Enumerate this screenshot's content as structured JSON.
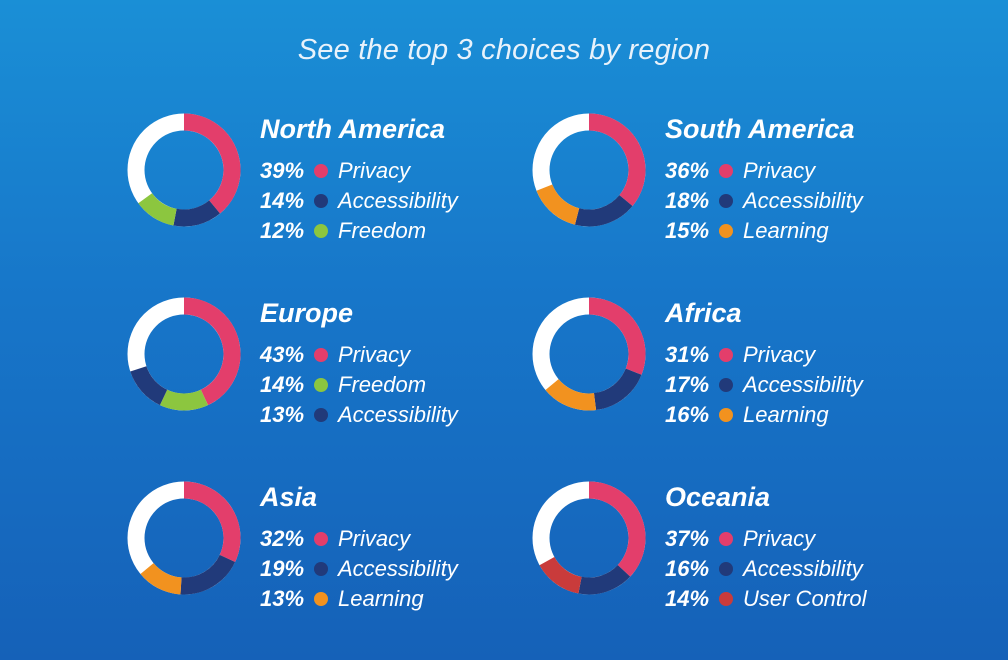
{
  "title": "See the top 3 choices by region",
  "colors": {
    "Privacy": "#e33e6b",
    "Accessibility": "#213a7a",
    "Freedom": "#8cc63f",
    "Learning": "#f2921f",
    "User Control": "#c93b3b",
    "remainder": "#ffffff"
  },
  "chart_data": [
    {
      "type": "pie",
      "region": "North America",
      "values": [
        {
          "label": "Privacy",
          "pct": "39%",
          "value": 39
        },
        {
          "label": "Accessibility",
          "pct": "14%",
          "value": 14
        },
        {
          "label": "Freedom",
          "pct": "12%",
          "value": 12
        }
      ]
    },
    {
      "type": "pie",
      "region": "South America",
      "values": [
        {
          "label": "Privacy",
          "pct": "36%",
          "value": 36
        },
        {
          "label": "Accessibility",
          "pct": "18%",
          "value": 18
        },
        {
          "label": "Learning",
          "pct": "15%",
          "value": 15
        }
      ]
    },
    {
      "type": "pie",
      "region": "Europe",
      "values": [
        {
          "label": "Privacy",
          "pct": "43%",
          "value": 43
        },
        {
          "label": "Freedom",
          "pct": "14%",
          "value": 14
        },
        {
          "label": "Accessibility",
          "pct": "13%",
          "value": 13
        }
      ]
    },
    {
      "type": "pie",
      "region": "Africa",
      "values": [
        {
          "label": "Privacy",
          "pct": "31%",
          "value": 31
        },
        {
          "label": "Accessibility",
          "pct": "17%",
          "value": 17
        },
        {
          "label": "Learning",
          "pct": "16%",
          "value": 16
        }
      ]
    },
    {
      "type": "pie",
      "region": "Asia",
      "values": [
        {
          "label": "Privacy",
          "pct": "32%",
          "value": 32
        },
        {
          "label": "Accessibility",
          "pct": "19%",
          "value": 19
        },
        {
          "label": "Learning",
          "pct": "13%",
          "value": 13
        }
      ]
    },
    {
      "type": "pie",
      "region": "Oceania",
      "values": [
        {
          "label": "Privacy",
          "pct": "37%",
          "value": 37
        },
        {
          "label": "Accessibility",
          "pct": "16%",
          "value": 16
        },
        {
          "label": "User Control",
          "pct": "14%",
          "value": 14
        }
      ]
    }
  ]
}
